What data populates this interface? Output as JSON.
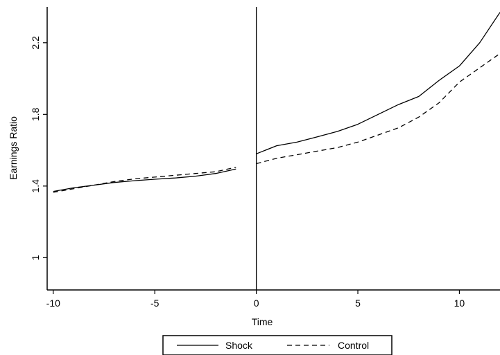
{
  "chart_data": {
    "type": "line",
    "xlabel": "Time",
    "ylabel": "Earnings Ratio",
    "xlim": [
      -10.3,
      12
    ],
    "ylim": [
      0.82,
      2.4
    ],
    "xticks": [
      -10,
      -5,
      0,
      5,
      10
    ],
    "yticks": [
      1,
      1.4,
      1.8,
      2.2
    ],
    "xtick_labels": [
      "-10",
      "-5",
      "0",
      "5",
      "10"
    ],
    "ytick_labels": [
      "1",
      "1.4",
      "1.8",
      "2.2"
    ],
    "vline_x": 0,
    "grid": false,
    "legend_position": "bottom-center",
    "series": [
      {
        "name": "Shock",
        "style": "solid",
        "color": "#000000",
        "segments": [
          {
            "x": [
              -10,
              -9,
              -8,
              -7,
              -6,
              -5,
              -4,
              -3,
              -2,
              -1
            ],
            "y": [
              1.37,
              1.39,
              1.405,
              1.42,
              1.43,
              1.438,
              1.445,
              1.455,
              1.47,
              1.495
            ]
          },
          {
            "x": [
              0,
              1,
              2,
              3,
              4,
              5,
              6,
              7,
              8,
              9,
              10,
              11,
              12
            ],
            "y": [
              1.58,
              1.625,
              1.645,
              1.675,
              1.705,
              1.745,
              1.8,
              1.855,
              1.9,
              1.99,
              2.07,
              2.2,
              2.37
            ]
          }
        ]
      },
      {
        "name": "Control",
        "style": "dashed",
        "color": "#000000",
        "segments": [
          {
            "x": [
              -10,
              -9,
              -8,
              -7,
              -6,
              -5,
              -4,
              -3,
              -2,
              -1
            ],
            "y": [
              1.365,
              1.385,
              1.405,
              1.425,
              1.44,
              1.45,
              1.46,
              1.47,
              1.48,
              1.505
            ]
          },
          {
            "x": [
              0,
              1,
              2,
              3,
              4,
              5,
              6,
              7,
              8,
              9,
              10,
              11,
              12
            ],
            "y": [
              1.525,
              1.555,
              1.575,
              1.595,
              1.615,
              1.645,
              1.685,
              1.725,
              1.785,
              1.865,
              1.98,
              2.06,
              2.14
            ]
          }
        ]
      }
    ]
  }
}
